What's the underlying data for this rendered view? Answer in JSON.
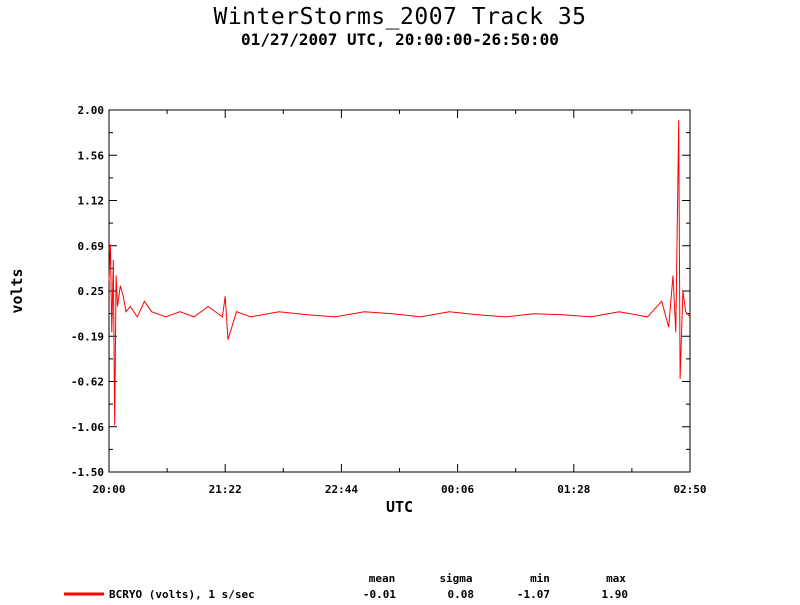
{
  "header": {
    "title": "WinterStorms_2007 Track 35",
    "subtitle": "01/27/2007 UTC, 20:00:00-26:50:00"
  },
  "chart_data": {
    "type": "line",
    "title": "WinterStorms_2007 Track 35",
    "subtitle": "01/27/2007 UTC, 20:00:00-26:50:00",
    "xlabel": "UTC",
    "ylabel": "volts",
    "x_tick_labels": [
      "20:00",
      "21:22",
      "22:44",
      "00:06",
      "01:28",
      "02:50"
    ],
    "y_tick_labels": [
      "2.00",
      "1.56",
      "1.12",
      "0.69",
      "0.25",
      "-0.19",
      "-0.62",
      "-1.06",
      "-1.50"
    ],
    "xlim_minutes": [
      0,
      410
    ],
    "ylim": [
      -1.5,
      2.0
    ],
    "grid": false,
    "series": [
      {
        "name": "BCRYO (volts), 1 s/sec",
        "color": "#ff0000",
        "x_minutes": [
          0,
          1,
          2,
          3,
          4,
          5,
          6,
          8,
          10,
          12,
          15,
          20,
          25,
          30,
          40,
          50,
          60,
          70,
          80,
          82,
          84,
          90,
          100,
          120,
          140,
          160,
          180,
          200,
          220,
          240,
          260,
          280,
          300,
          320,
          340,
          360,
          380,
          390,
          395,
          398,
          400,
          402,
          403,
          405,
          407,
          410
        ],
        "values": [
          0.35,
          0.7,
          -0.15,
          0.55,
          -1.05,
          0.4,
          0.1,
          0.3,
          0.2,
          0.05,
          0.1,
          0.0,
          0.15,
          0.05,
          0.0,
          0.05,
          0.0,
          0.1,
          0.0,
          0.2,
          -0.22,
          0.05,
          0.0,
          0.05,
          0.02,
          0.0,
          0.05,
          0.03,
          0.0,
          0.05,
          0.02,
          0.0,
          0.03,
          0.02,
          0.0,
          0.05,
          0.0,
          0.15,
          -0.1,
          0.4,
          -0.15,
          1.9,
          -0.6,
          0.25,
          0.05,
          0.0
        ]
      }
    ],
    "stats": {
      "headers": [
        "mean",
        "sigma",
        "min",
        "max"
      ],
      "values": [
        "-0.01",
        "0.08",
        "-1.07",
        "1.90"
      ]
    }
  }
}
